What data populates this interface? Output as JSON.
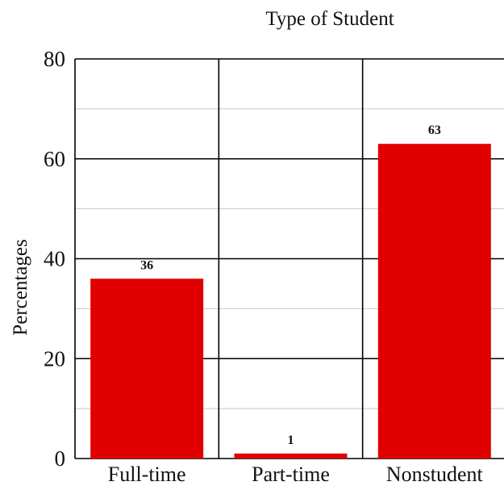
{
  "chart_data": {
    "type": "bar",
    "title": "Type of Student",
    "xlabel": "",
    "ylabel": "Percentages",
    "categories": [
      "Full-time",
      "Part-time",
      "Nonstudent"
    ],
    "values": [
      36,
      1,
      63
    ],
    "value_labels": [
      "36",
      "1",
      "63"
    ],
    "ylim": [
      0,
      80
    ],
    "yticks": [
      0,
      20,
      40,
      60,
      80
    ],
    "ytick_labels": [
      "0",
      "20",
      "40",
      "60",
      "80"
    ],
    "minor_grid_every": 10,
    "grid": true,
    "legend": "none"
  },
  "colors": {
    "bar": "#e00000",
    "major_grid": "#000000",
    "minor_grid": "#c8c8c8",
    "text": "#111111"
  }
}
